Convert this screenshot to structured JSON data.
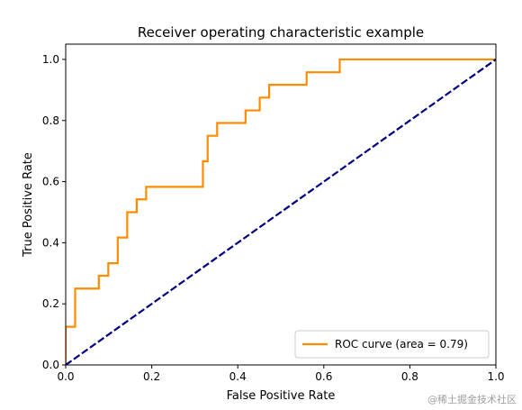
{
  "chart_data": {
    "type": "line",
    "title": "Receiver operating characteristic example",
    "xlabel": "False Positive Rate",
    "ylabel": "True Positive Rate",
    "xlim": [
      0.0,
      1.0
    ],
    "ylim": [
      0.0,
      1.05
    ],
    "xticks": [
      0.0,
      0.2,
      0.4,
      0.6,
      0.8,
      1.0
    ],
    "yticks": [
      0.0,
      0.2,
      0.4,
      0.6,
      0.8,
      1.0
    ],
    "xtick_labels": [
      "0.0",
      "0.2",
      "0.4",
      "0.6",
      "0.8",
      "1.0"
    ],
    "ytick_labels": [
      "0.0",
      "0.2",
      "0.4",
      "0.6",
      "0.8",
      "1.0"
    ],
    "grid": false,
    "legend_position": "lower-right",
    "series": [
      {
        "name": "ROC curve (area = 0.79)",
        "color": "#ff8c00",
        "style": "solid",
        "x": [
          0.0,
          0.0,
          0.022,
          0.022,
          0.077,
          0.077,
          0.099,
          0.099,
          0.121,
          0.121,
          0.143,
          0.143,
          0.165,
          0.165,
          0.187,
          0.187,
          0.319,
          0.319,
          0.33,
          0.33,
          0.352,
          0.352,
          0.418,
          0.418,
          0.451,
          0.451,
          0.473,
          0.473,
          0.527,
          0.527,
          0.56,
          0.56,
          0.571,
          0.571,
          0.637,
          0.637,
          1.0
        ],
        "y": [
          0.0,
          0.125,
          0.125,
          0.25,
          0.25,
          0.292,
          0.292,
          0.333,
          0.333,
          0.417,
          0.417,
          0.5,
          0.5,
          0.542,
          0.542,
          0.583,
          0.583,
          0.667,
          0.667,
          0.75,
          0.75,
          0.792,
          0.792,
          0.833,
          0.833,
          0.875,
          0.875,
          0.917,
          0.917,
          0.917,
          0.917,
          0.958,
          0.958,
          0.958,
          0.958,
          1.0,
          1.0
        ]
      },
      {
        "name": "",
        "color": "#000080",
        "style": "dashed",
        "x": [
          0.0,
          1.0
        ],
        "y": [
          0.0,
          1.0
        ]
      }
    ]
  },
  "watermark": "@稀土掘金技术社区"
}
